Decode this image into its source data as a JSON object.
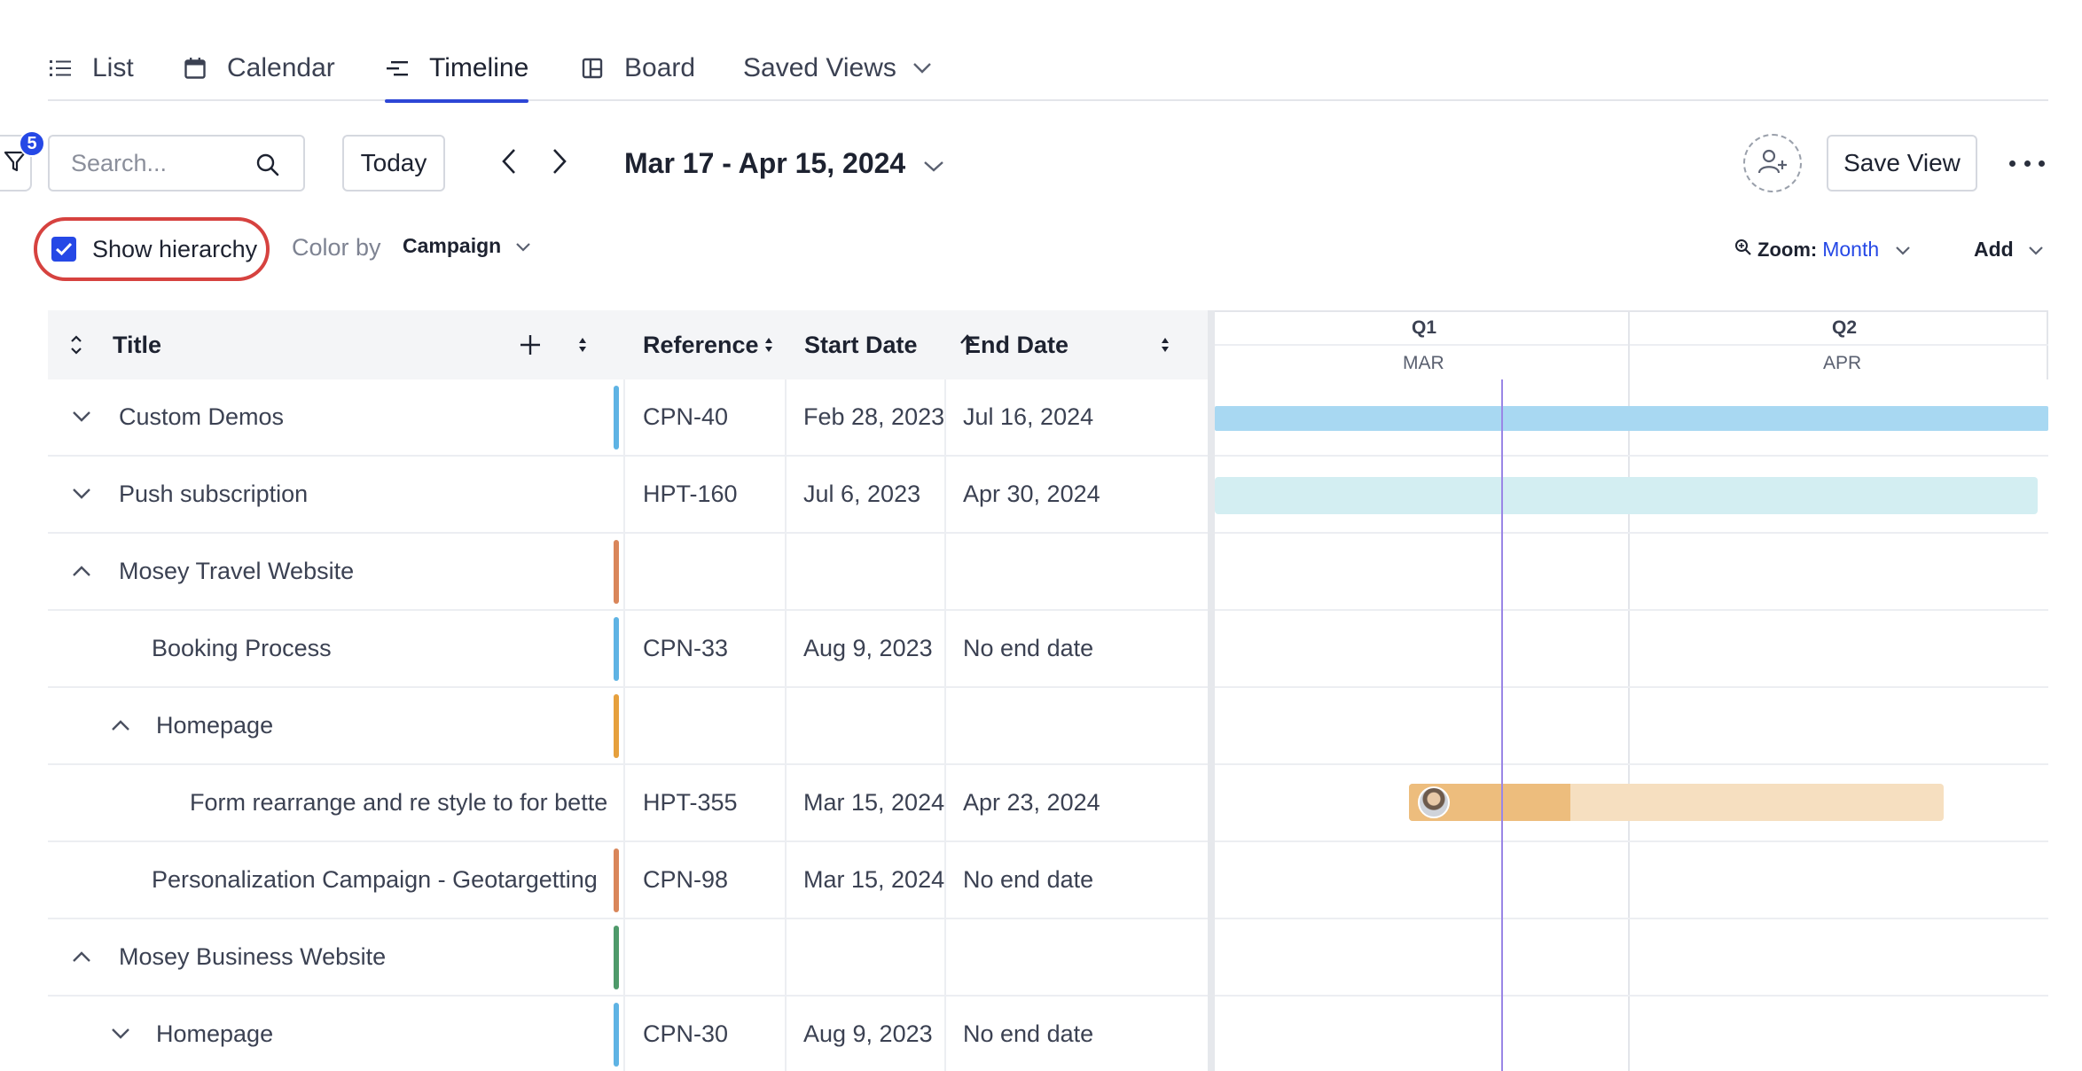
{
  "tabs": [
    {
      "label": "List",
      "icon": "list-icon"
    },
    {
      "label": "Calendar",
      "icon": "calendar-icon"
    },
    {
      "label": "Timeline",
      "icon": "timeline-icon",
      "active": true
    },
    {
      "label": "Board",
      "icon": "board-icon"
    },
    {
      "label": "Saved Views",
      "icon": "chevron-down-icon"
    }
  ],
  "toolbar": {
    "filter_count": "5",
    "search_placeholder": "Search...",
    "today_label": "Today",
    "date_range": "Mar 17 - Apr 15, 2024",
    "save_view_label": "Save View"
  },
  "options": {
    "show_hierarchy_label": "Show hierarchy",
    "show_hierarchy_checked": true,
    "color_by_label": "Color by",
    "color_by_value": "Campaign",
    "zoom_label": "Zoom:",
    "zoom_value": "Month",
    "add_label": "Add"
  },
  "table": {
    "columns": {
      "title": "Title",
      "reference": "Reference",
      "start_date": "Start Date",
      "end_date": "End Date"
    },
    "rows": [
      {
        "title": "Custom Demos",
        "reference": "CPN-40",
        "start": "Feb 28, 2023",
        "end": "Jul 16, 2024",
        "level": 0,
        "expander": "down",
        "color": "#5eb3e4"
      },
      {
        "title": "Push subscription",
        "reference": "HPT-160",
        "start": "Jul 6, 2023",
        "end": "Apr 30, 2024",
        "level": 0,
        "expander": "down",
        "color": ""
      },
      {
        "title": "Mosey Travel Website",
        "reference": "",
        "start": "",
        "end": "",
        "level": 0,
        "expander": "up",
        "color": "#d9865a"
      },
      {
        "title": "Booking Process",
        "reference": "CPN-33",
        "start": "Aug 9, 2023",
        "end": "No end date",
        "level": 1,
        "expander": "",
        "color": "#5eb3e4"
      },
      {
        "title": "Homepage",
        "reference": "",
        "start": "",
        "end": "",
        "level": 1,
        "expander": "up",
        "color": "#e6a03d"
      },
      {
        "title": "Form rearrange and re style to for bette",
        "reference": "HPT-355",
        "start": "Mar 15, 2024",
        "end": "Apr 23, 2024",
        "level": 2,
        "expander": "",
        "color": ""
      },
      {
        "title": "Personalization Campaign - Geotargetting",
        "reference": "CPN-98",
        "start": "Mar 15, 2024",
        "end": "No end date",
        "level": 1,
        "expander": "",
        "color": "#d9865a"
      },
      {
        "title": "Mosey Business Website",
        "reference": "",
        "start": "",
        "end": "",
        "level": 0,
        "expander": "up",
        "color": "#4e9a6a"
      },
      {
        "title": "Homepage",
        "reference": "CPN-30",
        "start": "Aug 9, 2023",
        "end": "No end date",
        "level": 1,
        "expander": "down",
        "color": "#5eb3e4"
      }
    ]
  },
  "timeline": {
    "quarters": [
      "Q1",
      "Q2"
    ],
    "months": [
      "MAR",
      "APR"
    ],
    "colors": {
      "blue_bar": "#a8d8f2",
      "teal_bar": "#d3eef2",
      "orange_progress": "#edbd7d",
      "orange_bar": "#f6dfc0",
      "today_line": "#9a86e6"
    }
  }
}
